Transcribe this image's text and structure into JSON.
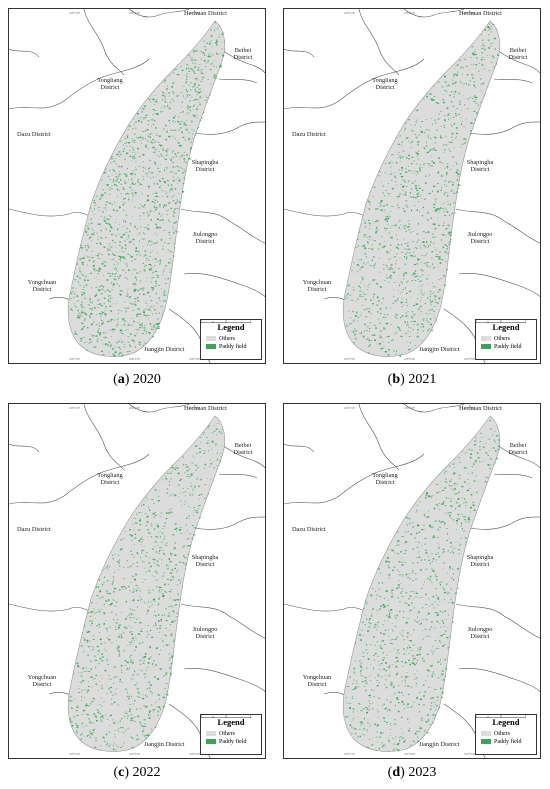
{
  "districts": {
    "hechuan": "Hechuan District",
    "beibei": "Beibei District",
    "tongliang": "Tongliang District",
    "dazu": "Dazu District",
    "shapingba": "Shapingba District",
    "jiulongpo": "Jiulongpo District",
    "yongchuan": "Yongchuan District",
    "jiangjin": "Jiangjin District"
  },
  "legend": {
    "title": "Legend",
    "others_label": "Others",
    "paddy_label": "Paddy field"
  },
  "colors": {
    "others": "#dcdcdc",
    "paddy": "#3aa357",
    "boundary": "#555555"
  },
  "panels": [
    {
      "letter": "a",
      "year": "2020",
      "paddy_density": 0.6
    },
    {
      "letter": "b",
      "year": "2021",
      "paddy_density": 0.45
    },
    {
      "letter": "c",
      "year": "2022",
      "paddy_density": 0.42
    },
    {
      "letter": "d",
      "year": "2023",
      "paddy_density": 0.4
    }
  ]
}
